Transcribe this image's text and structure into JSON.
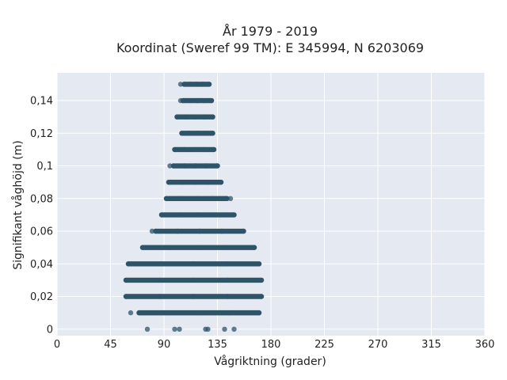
{
  "chart_data": {
    "type": "scatter",
    "title": "År 1979 - 2019",
    "subtitle": "Koordinat (Sweref 99 TM): E 345994, N 6203069",
    "xlabel": "Vågriktning (grader)",
    "ylabel": "Signifikant våghöjd (m)",
    "xlim": [
      0,
      360
    ],
    "ylim": [
      -0.004,
      0.157
    ],
    "x_ticks": [
      0,
      45,
      90,
      135,
      180,
      225,
      270,
      315,
      360
    ],
    "x_tick_labels": [
      "0",
      "45",
      "90",
      "135",
      "180",
      "225",
      "270",
      "315",
      "360"
    ],
    "y_ticks": [
      0,
      0.02,
      0.04,
      0.06,
      0.08,
      0.1,
      0.12,
      0.14
    ],
    "y_tick_labels": [
      "0",
      "0,02",
      "0,04",
      "0,06",
      "0,08",
      "0,1",
      "0,12",
      "0,14"
    ],
    "grid": true,
    "plot_background": "#e5e9f2",
    "marker_color": "#2e5468",
    "bands": [
      {
        "y": 0.0,
        "points": [
          76,
          99,
          103,
          125,
          127,
          141,
          149
        ]
      },
      {
        "y": 0.01,
        "min": 69,
        "max": 170,
        "outliers": [
          62
        ]
      },
      {
        "y": 0.02,
        "min": 58,
        "max": 172
      },
      {
        "y": 0.03,
        "min": 58,
        "max": 172
      },
      {
        "y": 0.04,
        "min": 60,
        "max": 170
      },
      {
        "y": 0.05,
        "min": 72,
        "max": 166
      },
      {
        "y": 0.06,
        "min": 83,
        "max": 157,
        "outliers": [
          80
        ]
      },
      {
        "y": 0.07,
        "min": 88,
        "max": 149
      },
      {
        "y": 0.08,
        "min": 92,
        "max": 143,
        "outliers": [
          146
        ]
      },
      {
        "y": 0.09,
        "min": 94,
        "max": 138
      },
      {
        "y": 0.1,
        "min": 98,
        "max": 135,
        "outliers": [
          95
        ]
      },
      {
        "y": 0.11,
        "min": 99,
        "max": 132
      },
      {
        "y": 0.12,
        "min": 105,
        "max": 131
      },
      {
        "y": 0.13,
        "min": 101,
        "max": 131
      },
      {
        "y": 0.14,
        "min": 106,
        "max": 130,
        "outliers": [
          104
        ]
      },
      {
        "y": 0.15,
        "min": 107,
        "max": 128,
        "outliers": [
          104
        ]
      }
    ]
  }
}
